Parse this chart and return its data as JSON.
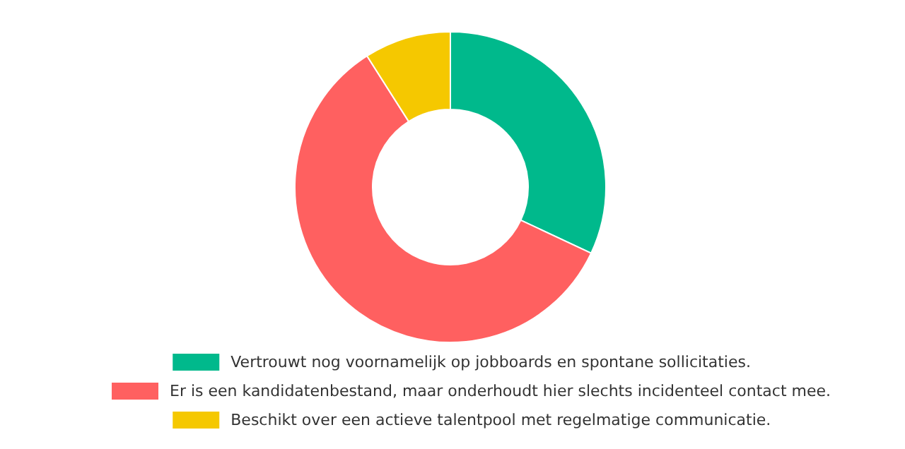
{
  "chart_data": {
    "type": "donut",
    "categories": [
      "Vertrouwt nog voornamelijk op jobboards en spontane sollicitaties.",
      "Er is een kandidatenbestand, maar onderhoudt hier slechts incidenteel contact mee.",
      "Beschikt over een actieve talentpool met regelmatige communicatie."
    ],
    "values": [
      32,
      59,
      9
    ],
    "colors": [
      "#00b98c",
      "#ff6060",
      "#f5c800"
    ],
    "legend": "bottom"
  }
}
